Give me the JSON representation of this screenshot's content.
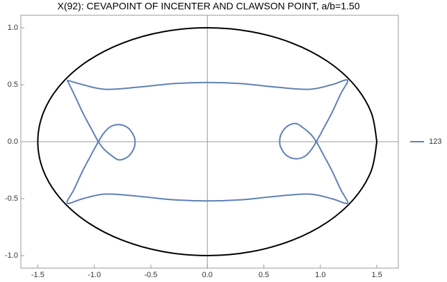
{
  "chart_data": {
    "type": "line",
    "title": "X(92): CEVAPOINT OF INCENTER AND CLAWSON POINT, a/b=1.50",
    "xlim": [
      -1.65,
      1.69
    ],
    "ylim": [
      -1.11,
      1.11
    ],
    "xticks": [
      -1.5,
      {
        "value": -1,
        "label": "-1.0"
      },
      -0.5,
      {
        "value": 0,
        "label": "0.0"
      },
      0.5,
      {
        "value": 1,
        "label": "1.0"
      },
      1.5
    ],
    "yticks": [
      {
        "value": -1,
        "label": "-1.0"
      },
      -0.5,
      {
        "value": 0,
        "label": "0.0"
      },
      0.5,
      {
        "value": 1,
        "label": "1.0"
      }
    ],
    "legend": "right",
    "series": [
      {
        "color": "#000000",
        "x": [
          1.5,
          1.449,
          1.299,
          1.061,
          0.75,
          0.388,
          0,
          -0.388,
          -0.75,
          -1.061,
          -1.299,
          -1.449,
          -1.5,
          -1.449,
          -1.299,
          -1.061,
          -0.75,
          -0.388,
          0,
          0.388,
          0.75,
          1.061,
          1.299,
          1.449,
          1.5
        ],
        "values": [
          0,
          0.259,
          0.5,
          0.707,
          0.866,
          0.966,
          1,
          0.966,
          0.866,
          0.707,
          0.5,
          0.259,
          0,
          -0.259,
          -0.5,
          -0.707,
          -0.866,
          -0.966,
          -1,
          -0.966,
          -0.866,
          -0.707,
          -0.5,
          -0.259,
          0
        ]
      },
      {
        "name": "123",
        "color": "#5e81b5",
        "x": [
          -1.24,
          -1.1,
          -0.9,
          -0.6,
          -0.3,
          0,
          0.3,
          0.6,
          0.9,
          1.1,
          1.24,
          1.18,
          1.1,
          1.03,
          0.97,
          0.92,
          0.86,
          0.78,
          0.7,
          0.65,
          0.64,
          0.65,
          0.7,
          0.78,
          0.85,
          0.92,
          0.97,
          1.03,
          1.1,
          1.18,
          1.24,
          1.1,
          0.9,
          0.6,
          0.3,
          0,
          -0.3,
          -0.6,
          -0.9,
          -1.1,
          -1.24,
          -1.18,
          -1.1,
          -1.03,
          -0.97,
          -0.92,
          -0.86,
          -0.78,
          -0.7,
          -0.65,
          -0.64,
          -0.65,
          -0.7,
          -0.78,
          -0.85,
          -0.92,
          -0.97,
          -1.03,
          -1.1,
          -1.18,
          -1.24
        ],
        "values": [
          0.54,
          0.5,
          0.46,
          0.48,
          0.51,
          0.52,
          0.51,
          0.48,
          0.46,
          0.5,
          0.54,
          0.42,
          0.25,
          0.12,
          0.01,
          -0.07,
          -0.13,
          -0.15,
          -0.12,
          -0.05,
          0,
          0.06,
          0.13,
          0.16,
          0.12,
          0.06,
          -0.01,
          -0.12,
          -0.25,
          -0.42,
          -0.54,
          -0.5,
          -0.46,
          -0.48,
          -0.51,
          -0.52,
          -0.51,
          -0.48,
          -0.46,
          -0.5,
          -0.54,
          -0.42,
          -0.25,
          -0.12,
          -0.01,
          0.07,
          0.13,
          0.15,
          0.12,
          0.05,
          0,
          -0.06,
          -0.13,
          -0.16,
          -0.12,
          -0.06,
          0.01,
          0.12,
          0.25,
          0.42,
          0.54
        ]
      }
    ]
  }
}
